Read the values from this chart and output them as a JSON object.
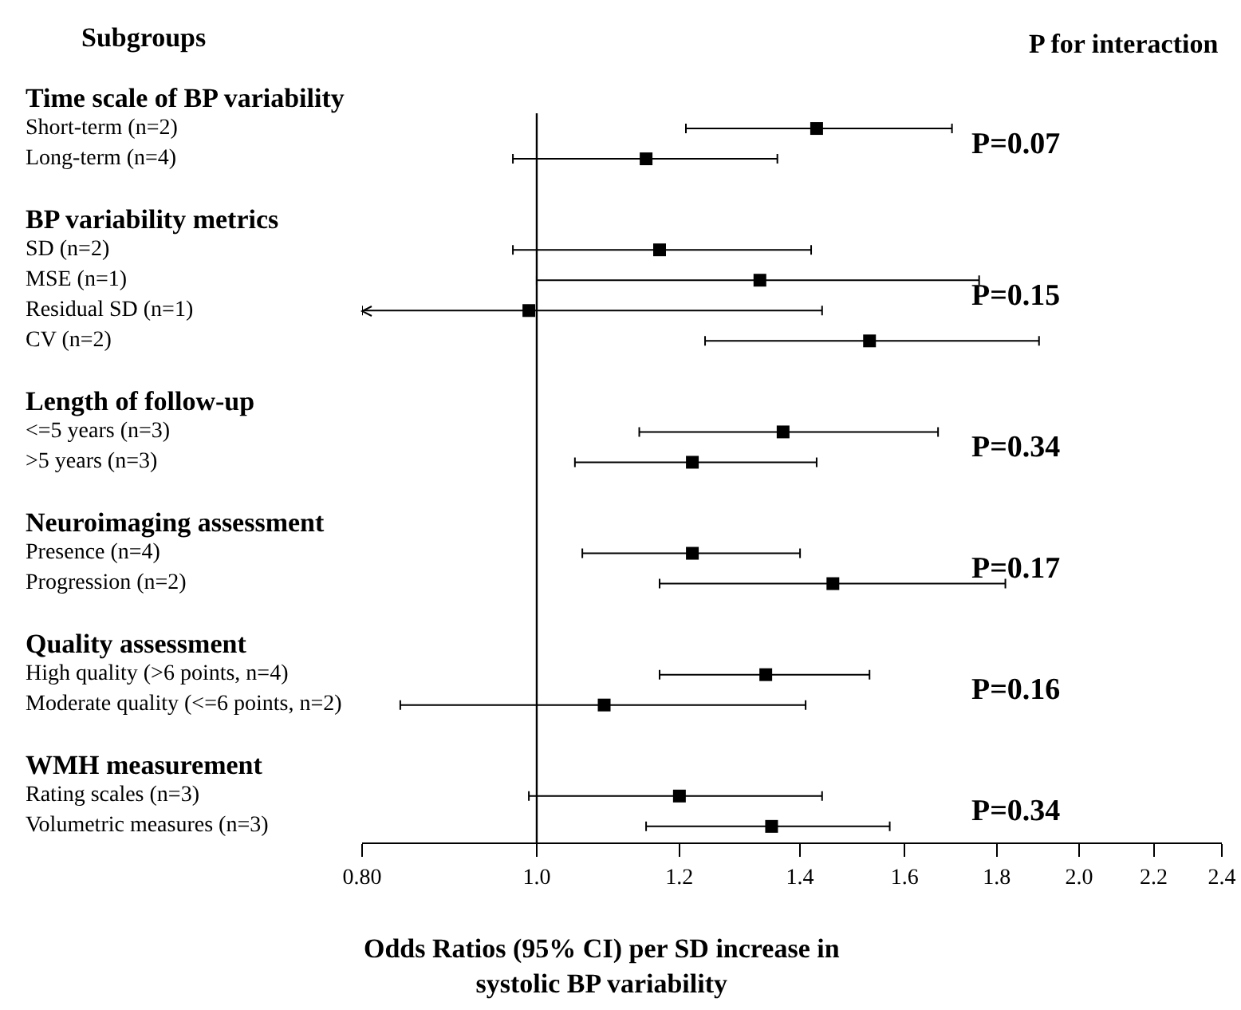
{
  "chart_data": {
    "type": "scatter",
    "xlabel": "Odds Ratios (95% CI) per SD increase in\nsystolic BP variability",
    "categories": [
      "Time scale of BP variability",
      "Short-term (n=2)",
      "Long-term (n=4)",
      null,
      "BP variability metrics",
      "SD (n=2)",
      "MSE (n=1)",
      "Residual SD (n=1)",
      "CV (n=2)",
      null,
      "Length of follow-up",
      "<=5 years (n=3)",
      ">5 years (n=3)",
      null,
      "Neuroimaging assessment",
      "Presence (n=4)",
      "Progression (n=2)",
      null,
      "Quality assessment",
      "High quality (>6 points, n=4)",
      "Moderate quality (<=6 points, n=2)",
      null,
      "WMH measurement",
      "Rating scales (n=3)",
      "Volumetric measures (n=3)"
    ],
    "series": [
      {
        "color": "#000000",
        "values": [
          null,
          1.43,
          1.15,
          null,
          null,
          1.17,
          1.33,
          0.99,
          1.53,
          null,
          null,
          1.37,
          1.22,
          null,
          null,
          1.22,
          1.46,
          null,
          null,
          1.34,
          1.09,
          null,
          null,
          1.2,
          1.35
        ],
        "errors": [
          null,
          [
            1.21,
            1.7
          ],
          [
            0.97,
            1.36
          ],
          null,
          null,
          [
            0.97,
            1.42
          ],
          [
            1.0,
            1.76
          ],
          [
            0.8,
            1.44
          ],
          [
            1.24,
            1.9
          ],
          null,
          null,
          [
            1.14,
            1.67
          ],
          [
            1.05,
            1.43
          ],
          null,
          null,
          [
            1.06,
            1.4
          ],
          [
            1.17,
            1.82
          ],
          null,
          null,
          [
            1.17,
            1.53
          ],
          [
            0.84,
            1.41
          ],
          null,
          null,
          [
            0.99,
            1.44
          ],
          [
            1.15,
            1.57
          ]
        ]
      }
    ],
    "orientation": "horizontal",
    "log": "x",
    "xlim": [
      0.8,
      2.4
    ],
    "xticks": [
      {
        "value": 0.8,
        "label": "0.80"
      },
      {
        "value": 1,
        "label": "1.0"
      },
      {
        "value": 1.2,
        "label": "1.2"
      },
      {
        "value": 1.4,
        "label": "1.4"
      },
      {
        "value": 1.6,
        "label": "1.6"
      },
      {
        "value": 1.8,
        "label": "1.8"
      },
      {
        "value": 2,
        "label": "2.0"
      },
      {
        "value": 2.2,
        "label": "2.2"
      },
      {
        "value": 2.4,
        "label": "2.4"
      }
    ],
    "ref_lines": [
      {
        "axis": "x",
        "value": 1,
        "color": "#000000"
      }
    ],
    "marker": "square",
    "annotations": [
      "Subgroups",
      "P for interaction",
      "P=0.07",
      "P=0.15",
      "P=0.34",
      "P=0.17",
      "P=0.16",
      "P=0.34"
    ]
  }
}
